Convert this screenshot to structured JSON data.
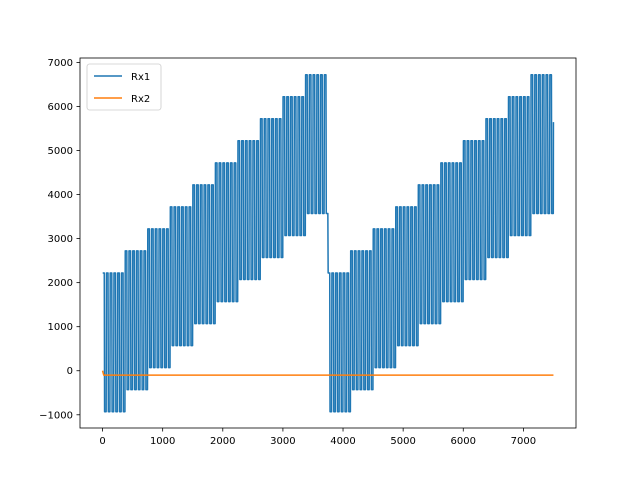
{
  "chart_data": {
    "type": "line",
    "title": "",
    "xlabel": "",
    "ylabel": "",
    "xlim": [
      -375,
      7875
    ],
    "ylim": [
      -1300,
      7100
    ],
    "xticks": [
      0,
      1000,
      2000,
      3000,
      4000,
      5000,
      6000,
      7000
    ],
    "yticks": [
      -1000,
      0,
      1000,
      2000,
      3000,
      4000,
      5000,
      6000,
      7000
    ],
    "grid": false,
    "legend_placement": "upper-left",
    "colors": {
      "Rx1": "#1f77b4",
      "Rx2": "#ff7f0e"
    },
    "series": [
      {
        "name": "Rx1",
        "color": "#1f77b4",
        "block_length": 375,
        "oscillations_per_block": 6,
        "segments": [
          {
            "x_start": 0,
            "x_end": 375,
            "low": -930,
            "high": 2220
          },
          {
            "x_start": 375,
            "x_end": 750,
            "low": -430,
            "high": 2720
          },
          {
            "x_start": 750,
            "x_end": 1125,
            "low": 70,
            "high": 3220
          },
          {
            "x_start": 1125,
            "x_end": 1500,
            "low": 570,
            "high": 3720
          },
          {
            "x_start": 1500,
            "x_end": 1875,
            "low": 1070,
            "high": 4220
          },
          {
            "x_start": 1875,
            "x_end": 2250,
            "low": 1570,
            "high": 4720
          },
          {
            "x_start": 2250,
            "x_end": 2625,
            "low": 2070,
            "high": 5220
          },
          {
            "x_start": 2625,
            "x_end": 3000,
            "low": 2570,
            "high": 5720
          },
          {
            "x_start": 3000,
            "x_end": 3375,
            "low": 3070,
            "high": 6220
          },
          {
            "x_start": 3375,
            "x_end": 3750,
            "low": 3570,
            "high": 6720
          },
          {
            "x_start": 3750,
            "x_end": 4125,
            "low": -930,
            "high": 2220
          },
          {
            "x_start": 4125,
            "x_end": 4500,
            "low": -430,
            "high": 2720
          },
          {
            "x_start": 4500,
            "x_end": 4875,
            "low": 70,
            "high": 3220
          },
          {
            "x_start": 4875,
            "x_end": 5250,
            "low": 570,
            "high": 3720
          },
          {
            "x_start": 5250,
            "x_end": 5625,
            "low": 1070,
            "high": 4220
          },
          {
            "x_start": 5625,
            "x_end": 6000,
            "low": 1570,
            "high": 4720
          },
          {
            "x_start": 6000,
            "x_end": 6375,
            "low": 2070,
            "high": 5220
          },
          {
            "x_start": 6375,
            "x_end": 6750,
            "low": 2570,
            "high": 5720
          },
          {
            "x_start": 6750,
            "x_end": 7125,
            "low": 3070,
            "high": 6220
          },
          {
            "x_start": 7125,
            "x_end": 7500,
            "low": 3570,
            "high": 6720
          }
        ]
      },
      {
        "name": "Rx2",
        "color": "#ff7f0e",
        "x": [
          0,
          20,
          7500
        ],
        "y": [
          0,
          -100,
          -100
        ]
      }
    ]
  }
}
